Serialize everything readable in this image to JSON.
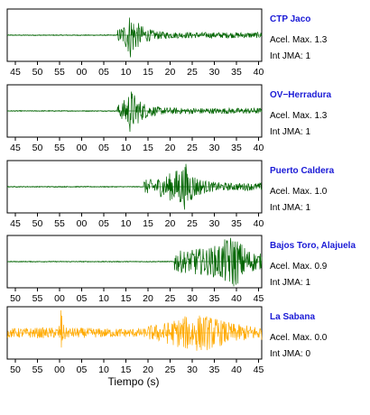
{
  "chart_data": {
    "type": "line",
    "xlabel": "Tiempo (s)",
    "panels": [
      {
        "station": "CTP Jaco",
        "accel": "Acel. Max. 1.3",
        "jma": "Int JMA: 1",
        "color": "#006400",
        "tick_labels": [
          "45",
          "50",
          "55",
          "00",
          "05",
          "10",
          "15",
          "20",
          "25",
          "30",
          "35",
          "40"
        ],
        "trace_type": "seismogram",
        "onset_x": 4.6,
        "peak_x": 5.2,
        "peak_amplitude": 1.0,
        "pre_noise": 0.02,
        "coda_level": 0.12
      },
      {
        "station": "OV−Herradura",
        "accel": "Acel. Max. 1.3",
        "jma": "Int JMA: 1",
        "color": "#006400",
        "tick_labels": [
          "45",
          "50",
          "55",
          "00",
          "05",
          "10",
          "15",
          "20",
          "25",
          "30",
          "35",
          "40"
        ],
        "trace_type": "seismogram",
        "onset_x": 4.6,
        "peak_x": 5.2,
        "peak_amplitude": 1.0,
        "pre_noise": 0.02,
        "coda_level": 0.12
      },
      {
        "station": "Puerto Caldera",
        "accel": "Acel. Max. 1.0",
        "jma": "Int JMA: 1",
        "color": "#006400",
        "tick_labels": [
          "45",
          "50",
          "55",
          "00",
          "05",
          "10",
          "15",
          "20",
          "25",
          "30",
          "35",
          "40"
        ],
        "trace_type": "seismogram",
        "onset_x": 5.8,
        "peak_x": 7.7,
        "peak_amplitude": 1.0,
        "pre_noise": 0.02,
        "coda_level": 0.15
      },
      {
        "station": "Bajos Toro, Alajuela",
        "accel": "Acel. Max. 0.9",
        "jma": "Int JMA: 1",
        "color": "#006400",
        "tick_labels": [
          "50",
          "55",
          "00",
          "05",
          "10",
          "15",
          "20",
          "25",
          "30",
          "35",
          "40",
          "45"
        ],
        "trace_type": "seismogram",
        "onset_x": 7.2,
        "peak_x": 9.9,
        "peak_amplitude": 0.8,
        "pre_noise": 0.02,
        "coda_level": 0.3
      },
      {
        "station": "La Sabana",
        "accel": "Acel. Max. 0.0",
        "jma": "Int JMA: 0",
        "color": "#ffaa00",
        "tick_labels": [
          "50",
          "55",
          "00",
          "05",
          "10",
          "15",
          "20",
          "25",
          "30",
          "35",
          "40",
          "45"
        ],
        "trace_type": "noise",
        "spike_x": 2.1,
        "peak_amplitude": 1.0,
        "pre_noise": 0.2,
        "coda_level": 0.45
      }
    ]
  }
}
